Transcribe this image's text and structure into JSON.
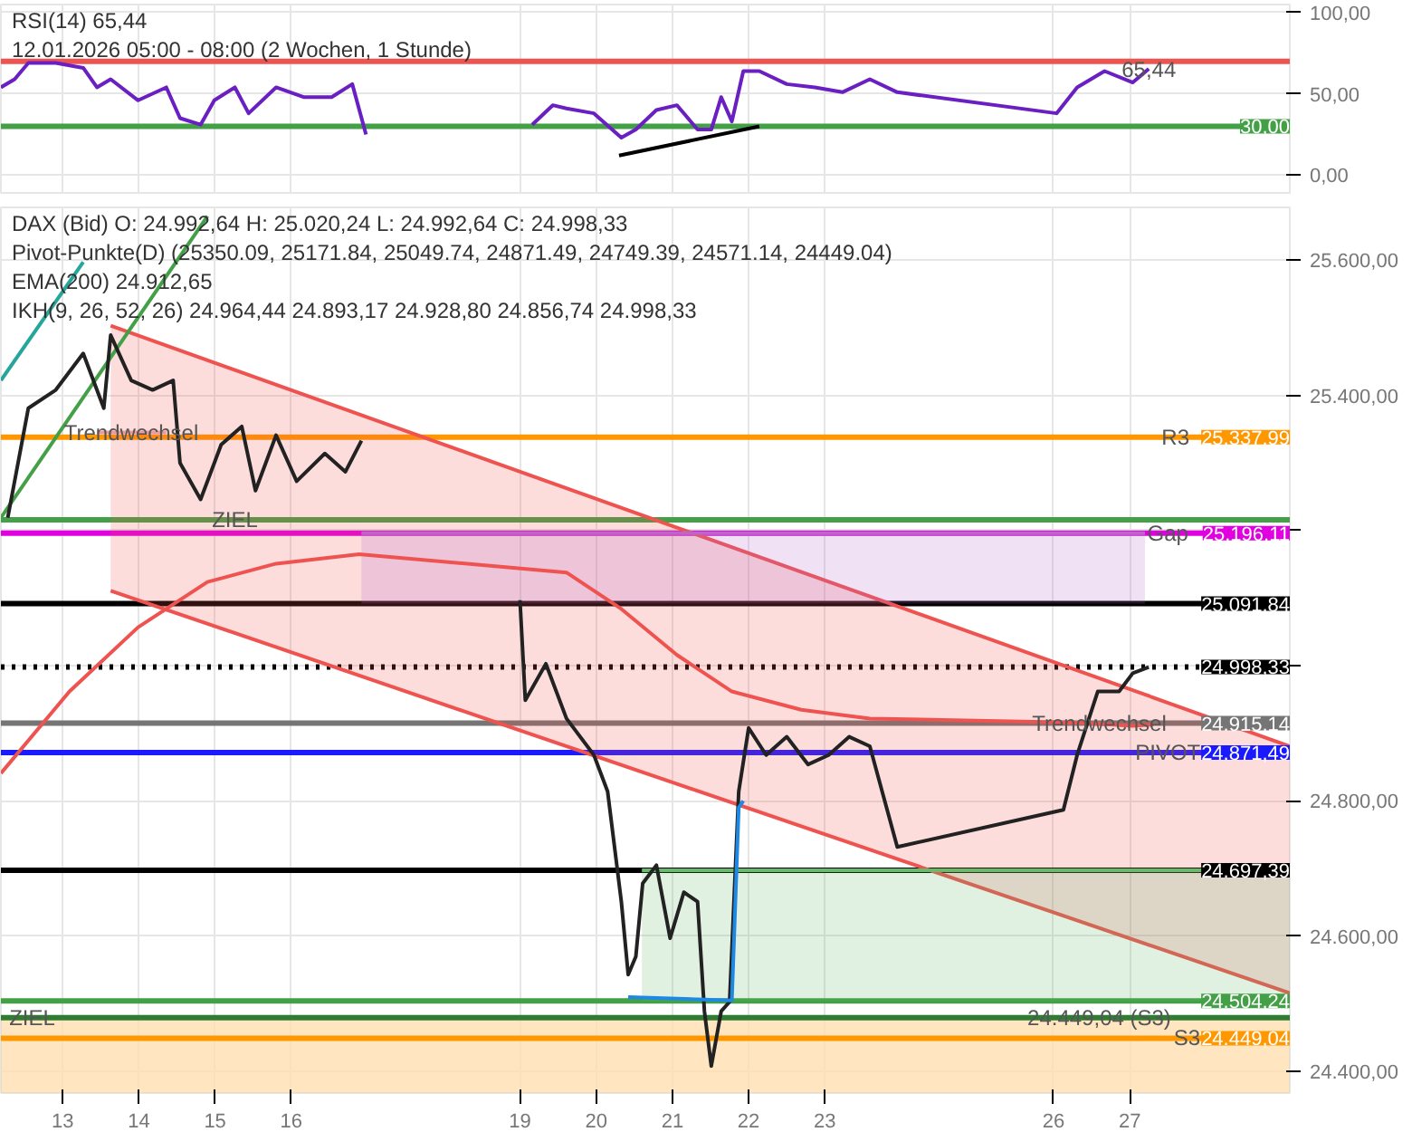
{
  "chart_data": [
    {
      "type": "line",
      "title": "RSI(14)  65,44",
      "subtitle": "12.01.2026 05:00 - 08:00  (2 Wochen, 1 Stunde)",
      "xlim": [
        12.19,
        29.1
      ],
      "ylim": [
        -11,
        105
      ],
      "tick_labels": "y",
      "grid": true,
      "xticks": [
        13,
        14,
        15,
        16,
        19,
        20,
        21,
        22,
        23,
        26,
        27
      ],
      "yticks": [
        {
          "value": 0,
          "label": "0,00"
        },
        {
          "value": 50,
          "label": "50,00"
        },
        {
          "value": 100,
          "label": "100,00"
        }
      ],
      "ref_lines": [
        {
          "axis": "y",
          "value": 70,
          "label": null,
          "color": "#ef5350"
        },
        {
          "axis": "y",
          "value": 30,
          "label": "30,00",
          "color": "#43a047"
        }
      ],
      "annotations": [
        {
          "text": "65,44",
          "x": 27.25,
          "y": 65.44
        }
      ],
      "series": [
        {
          "color": "#6a1fc2",
          "x": [
            12.19,
            12.37,
            12.55,
            12.91,
            13.27,
            13.45,
            13.63,
            13.99,
            14.36,
            14.54,
            14.81,
            14.99,
            15.26,
            15.44,
            15.8,
            16.16,
            16.53,
            16.8,
            16.98,
            18.0,
            19.16,
            19.43,
            19.61,
            19.97,
            20.33,
            20.52,
            20.79,
            21.06,
            21.33,
            21.51,
            21.64,
            21.78,
            21.93,
            22.14,
            22.5,
            22.87,
            23.23,
            23.59,
            23.95,
            26.04,
            26.31,
            26.67,
            27.04,
            27.25
          ],
          "values": [
            54,
            59,
            69,
            69,
            66,
            54,
            59,
            46,
            54,
            35,
            31,
            46,
            54,
            38,
            54,
            48,
            48,
            56,
            25,
            null,
            31,
            43,
            41,
            38,
            23,
            28,
            40,
            43,
            28,
            28,
            48,
            33,
            64,
            64,
            56,
            54,
            51,
            59,
            51,
            38,
            54,
            64,
            57,
            65.44
          ]
        },
        {
          "color": "#000000",
          "x": [
            20.3,
            22.14
          ],
          "values": [
            12,
            30
          ]
        }
      ]
    },
    {
      "type": "line",
      "title": "DAX (Bid)  O: 24.992,64  H: 25.020,24  L: 24.992,64  C: 24.998,33",
      "xlim": [
        12.19,
        29.1
      ],
      "ylim": [
        24368,
        25678
      ],
      "grid": true,
      "xticks": [
        13,
        14,
        15,
        16,
        19,
        20,
        21,
        22,
        23,
        26,
        27
      ],
      "yticks": [
        {
          "value": 24400,
          "label": "24.400,00"
        },
        {
          "value": 24600,
          "label": "24.600,00"
        },
        {
          "value": 24800,
          "label": "24.800,00"
        },
        {
          "value": 25000,
          "label": null
        },
        {
          "value": 25200,
          "label": null
        },
        {
          "value": 25400,
          "label": "25.400,00"
        },
        {
          "value": 25600,
          "label": "25.600,00"
        }
      ],
      "bands": [
        {
          "axis": "y",
          "from": 24368,
          "to": 24479.61,
          "color": "#ffe0b2",
          "label": null
        }
      ],
      "ref_lines": [
        {
          "axis": "y",
          "value": 25337.99,
          "label": "25.337,99",
          "color": "#ff9800"
        },
        {
          "axis": "y",
          "value": 25216,
          "label": null,
          "color": "#43a047"
        },
        {
          "axis": "y",
          "value": 25196.11,
          "label": "25.196,11",
          "color": "#e000e0"
        },
        {
          "axis": "y",
          "value": 25091.84,
          "label": "25.091,84",
          "color": "#000000"
        },
        {
          "axis": "y",
          "value": 24998.33,
          "label": "24.998,33",
          "color": "#000000",
          "line_style": "dotted"
        },
        {
          "axis": "y",
          "value": 24915.14,
          "label": "24.915,14",
          "color": "#757575"
        },
        {
          "axis": "y",
          "value": 24871.49,
          "label": "24.871,49",
          "color": "#1a1aff"
        },
        {
          "axis": "y",
          "value": 24697.39,
          "label": "24.697,39",
          "color": "#000000"
        },
        {
          "axis": "y",
          "value": 24504.24,
          "label": "24.504,24",
          "color": "#43a047"
        },
        {
          "axis": "y",
          "value": 24479.61,
          "label": null,
          "color": "#2e7d32"
        },
        {
          "axis": "y",
          "value": 24449.04,
          "label": "24.449,04",
          "color": "#ff9800"
        }
      ],
      "annotations": [
        "Pivot-Punkte(D) (25350.09, 25171.84, 25049.74, 24871.49, 24749.39, 24571.14, 24449.04)",
        "EMA(200)  24.912,65",
        "IKH(9, 26, 52, 26)  24.964,44  24.893,17  24.928,80  24.856,74  24.998,33",
        {
          "text": "Trendwechsel",
          "x": 13.9,
          "y": 25345
        },
        {
          "text": "ZIEL",
          "x": 15.26,
          "y": 25216
        },
        {
          "text": "ZIEL",
          "x": 12.6,
          "y": 24479.61
        },
        {
          "text": "R3",
          "x": 27.6,
          "y": 25337.99
        },
        {
          "text": "S3",
          "x": 27.75,
          "y": 24449.04
        },
        {
          "text": "Gap",
          "x": 27.5,
          "y": 25196.11
        },
        {
          "text": "Trendwechsel",
          "x": 26.6,
          "y": 24915.14
        },
        {
          "text": "PIVOT",
          "x": 27.5,
          "y": 24871.49
        },
        {
          "text": "24.449,04 (S3)",
          "x": 26.6,
          "y": 24479.61
        }
      ],
      "series": [
        {
          "color": "#ef5350",
          "x": [
            13.63,
            29.1
          ],
          "values": [
            25503,
            24881
          ],
          "lower": [
            25111,
            24516
          ],
          "upper": [
            25503,
            24881
          ]
        },
        {
          "color": "#ef5350",
          "x": [
            13.63,
            29.1
          ],
          "values": [
            25111,
            24516
          ]
        },
        {
          "color": "#ba68c8",
          "x": [
            16.92,
            27.2
          ],
          "values": [
            25196.11,
            25196.11
          ],
          "lower": [
            25091.84,
            25091.84
          ],
          "upper": [
            25196.11,
            25196.11
          ]
        },
        {
          "color": "#66bb6a",
          "x": [
            20.6,
            29.1
          ],
          "values": [
            24697.39,
            24697.39
          ],
          "lower": [
            24504.24,
            24504.24
          ],
          "upper": [
            24697.39,
            24697.39
          ]
        },
        {
          "color": "#ef9a9a",
          "x": [
            13.45,
            14.36
          ],
          "values": [
            25345,
            25345
          ]
        },
        {
          "color": "#43a047",
          "x": [
            12.19,
            14.9
          ],
          "values": [
            25219,
            25665
          ]
        },
        {
          "color": "#26a69a",
          "x": [
            12.19,
            13.27
          ],
          "values": [
            25422,
            25597
          ]
        },
        {
          "color": "#ef5350",
          "x": [
            12.19,
            13.09,
            13.99,
            14.9,
            15.8,
            16.89,
            19.61,
            20.33,
            21.06,
            21.78,
            22.69,
            23.59,
            26.31,
            27.04,
            27.31
          ],
          "values": [
            24841,
            24962,
            25057,
            25124,
            25151,
            25165,
            25138,
            25084,
            25016,
            24962,
            24935,
            24922,
            24916,
            24911,
            24913
          ]
        },
        {
          "color": "#222222",
          "x": [
            12.28,
            12.55,
            12.91,
            13.27,
            13.54,
            13.63,
            13.9,
            14.18,
            14.45,
            14.54,
            14.81,
            15.08,
            15.35,
            15.53,
            15.8,
            16.07,
            16.44,
            16.71,
            16.92,
            18.0,
            19.0,
            19.07,
            19.34,
            19.61,
            19.97,
            20.15,
            20.33,
            20.42,
            20.52,
            20.61,
            20.79,
            20.97,
            21.15,
            21.33,
            21.42,
            21.51,
            21.64,
            21.75,
            21.87,
            22.0,
            22.23,
            22.5,
            22.78,
            23.05,
            23.32,
            23.59,
            23.95,
            26.13,
            26.31,
            26.58,
            26.86,
            27.04,
            27.25
          ],
          "values": [
            25219,
            25381,
            25408,
            25462,
            25381,
            25489,
            25422,
            25408,
            25422,
            25300,
            25246,
            25327,
            25354,
            25259,
            25341,
            25273,
            25314,
            25287,
            25333,
            null,
            25097,
            24949,
            25003,
            24922,
            24868,
            24814,
            24651,
            24543,
            24570,
            24678,
            24705,
            24597,
            24665,
            24651,
            24489,
            24408,
            24489,
            24503,
            24814,
            24908,
            24868,
            24895,
            24854,
            24868,
            24895,
            24881,
            24732,
            24787,
            24868,
            24962,
            24962,
            24989,
            24998
          ]
        },
        {
          "color": "#1e88e5",
          "x": [
            20.42,
            21.78,
            21.87,
            21.93
          ],
          "values": [
            24510,
            24505,
            24790,
            24800
          ]
        }
      ]
    }
  ]
}
